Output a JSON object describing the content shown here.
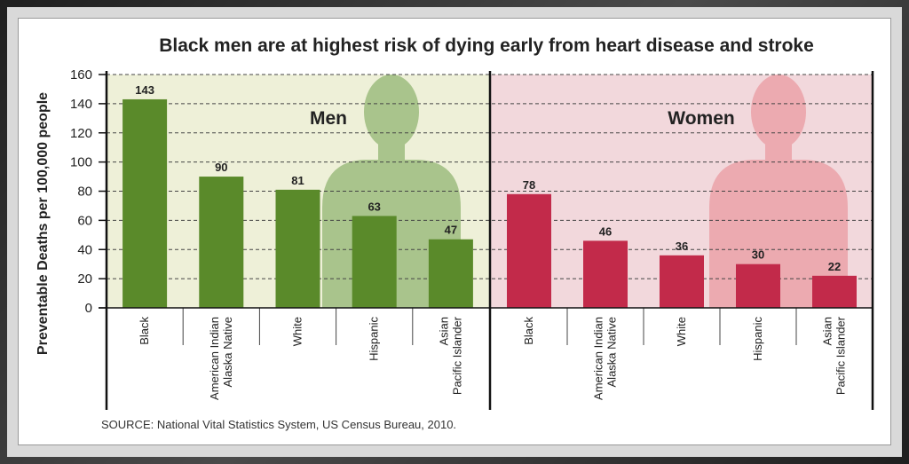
{
  "chart_data": {
    "type": "bar",
    "title": "Black men are at highest risk of dying early from heart disease and stroke",
    "ylabel": "Preventable Deaths per 100,000 people",
    "ylim": [
      0,
      160
    ],
    "yticks": [
      0,
      20,
      40,
      60,
      80,
      100,
      120,
      140,
      160
    ],
    "grid": true,
    "panels": [
      {
        "name": "Men",
        "color": "#5a8a2a",
        "background": "#eef0d8",
        "silhouette_color": "#a9c48c",
        "categories": [
          [
            "Black"
          ],
          [
            "American Indian",
            "Alaska Native"
          ],
          [
            "White"
          ],
          [
            "Hispanic"
          ],
          [
            "Asian",
            "Pacific Islander"
          ]
        ],
        "values": [
          143,
          90,
          81,
          63,
          47
        ]
      },
      {
        "name": "Women",
        "color": "#c22a4a",
        "background": "#f2d8dc",
        "silhouette_color": "#ecaab0",
        "categories": [
          [
            "Black"
          ],
          [
            "American Indian",
            "Alaska Native"
          ],
          [
            "White"
          ],
          [
            "Hispanic"
          ],
          [
            "Asian",
            "Pacific Islander"
          ]
        ],
        "values": [
          78,
          46,
          36,
          30,
          22
        ]
      }
    ],
    "source": "SOURCE: National Vital Statistics System, US Census Bureau, 2010."
  }
}
